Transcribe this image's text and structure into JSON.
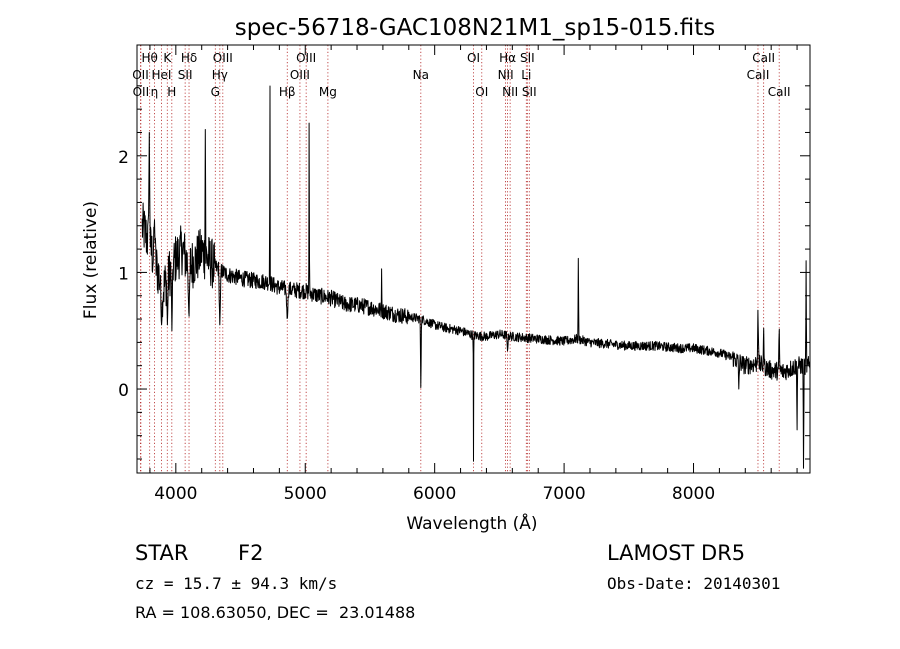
{
  "chart_data": {
    "type": "line",
    "title": "spec-56718-GAC108N21M1_sp15-015.fits",
    "xlabel": "Wavelength (Å)",
    "ylabel": "Flux (relative)",
    "xlim": [
      3700,
      8900
    ],
    "ylim": [
      -0.72,
      2.95
    ],
    "x_ticks": [
      4000,
      5000,
      6000,
      7000,
      8000
    ],
    "y_ticks": [
      0,
      1,
      2
    ],
    "x_tick_labels": [
      "4000",
      "5000",
      "6000",
      "7000",
      "8000"
    ],
    "y_tick_labels": [
      "0",
      "1",
      "2"
    ],
    "grid": false,
    "line_color": "#000000",
    "marker_line_color": "#b22222",
    "continuum": [
      [
        3700,
        1.48
      ],
      [
        3760,
        1.35
      ],
      [
        3800,
        1.22
      ],
      [
        3850,
        1.05
      ],
      [
        3900,
        0.85
      ],
      [
        3950,
        1.0
      ],
      [
        4000,
        1.12
      ],
      [
        4050,
        1.2
      ],
      [
        4100,
        1.05
      ],
      [
        4150,
        1.1
      ],
      [
        4200,
        1.18
      ],
      [
        4300,
        1.05
      ],
      [
        4400,
        0.98
      ],
      [
        4500,
        0.95
      ],
      [
        4600,
        0.93
      ],
      [
        4700,
        0.92
      ],
      [
        4800,
        0.87
      ],
      [
        4900,
        0.85
      ],
      [
        5000,
        0.84
      ],
      [
        5100,
        0.8
      ],
      [
        5200,
        0.78
      ],
      [
        5300,
        0.73
      ],
      [
        5400,
        0.72
      ],
      [
        5500,
        0.7
      ],
      [
        5600,
        0.67
      ],
      [
        5700,
        0.64
      ],
      [
        5800,
        0.62
      ],
      [
        5900,
        0.6
      ],
      [
        6000,
        0.55
      ],
      [
        6100,
        0.52
      ],
      [
        6200,
        0.5
      ],
      [
        6300,
        0.46
      ],
      [
        6400,
        0.45
      ],
      [
        6500,
        0.47
      ],
      [
        6600,
        0.45
      ],
      [
        6700,
        0.44
      ],
      [
        6800,
        0.43
      ],
      [
        6900,
        0.42
      ],
      [
        7000,
        0.41
      ],
      [
        7100,
        0.43
      ],
      [
        7200,
        0.4
      ],
      [
        7300,
        0.39
      ],
      [
        7400,
        0.38
      ],
      [
        7500,
        0.37
      ],
      [
        7600,
        0.37
      ],
      [
        7700,
        0.37
      ],
      [
        7800,
        0.36
      ],
      [
        7900,
        0.35
      ],
      [
        8000,
        0.35
      ],
      [
        8100,
        0.33
      ],
      [
        8200,
        0.31
      ],
      [
        8300,
        0.27
      ],
      [
        8400,
        0.2
      ],
      [
        8500,
        0.22
      ],
      [
        8600,
        0.16
      ],
      [
        8700,
        0.15
      ],
      [
        8800,
        0.2
      ],
      [
        8900,
        0.2
      ]
    ],
    "features": [
      {
        "x": 3795,
        "y": 2.2,
        "w": 8
      },
      {
        "x": 3835,
        "y": 1.45,
        "w": 10
      },
      {
        "x": 3890,
        "y": 0.55,
        "w": 10
      },
      {
        "x": 3935,
        "y": 0.55,
        "w": 8
      },
      {
        "x": 3970,
        "y": 0.5,
        "w": 8
      },
      {
        "x": 4102,
        "y": 0.6,
        "w": 10
      },
      {
        "x": 4228,
        "y": 2.38,
        "w": 4
      },
      {
        "x": 4340,
        "y": 0.55,
        "w": 10
      },
      {
        "x": 4727,
        "y": 2.95,
        "w": 3
      },
      {
        "x": 4861,
        "y": 0.58,
        "w": 10
      },
      {
        "x": 5030,
        "y": 2.28,
        "w": 3
      },
      {
        "x": 5590,
        "y": 1.03,
        "w": 3
      },
      {
        "x": 5893,
        "y": -0.05,
        "w": 5
      },
      {
        "x": 6300,
        "y": -0.62,
        "w": 3
      },
      {
        "x": 6563,
        "y": 0.32,
        "w": 8
      },
      {
        "x": 7110,
        "y": 1.12,
        "w": 4
      },
      {
        "x": 8350,
        "y": 0.0,
        "w": 6
      },
      {
        "x": 8498,
        "y": 0.72,
        "w": 6
      },
      {
        "x": 8542,
        "y": 0.55,
        "w": 5
      },
      {
        "x": 8662,
        "y": 0.55,
        "w": 5
      },
      {
        "x": 8800,
        "y": -0.35,
        "w": 4
      },
      {
        "x": 8850,
        "y": -0.68,
        "w": 4
      },
      {
        "x": 8870,
        "y": 1.1,
        "w": 4
      }
    ],
    "line_markers": [
      {
        "x": 3798,
        "label": "Hθ",
        "row": 0
      },
      {
        "x": 3727,
        "label": "OII",
        "row": 1
      },
      {
        "x": 3730,
        "label": "OII",
        "row": 2
      },
      {
        "x": 3835,
        "label": "η",
        "row": 2
      },
      {
        "x": 3889,
        "label": "HeI",
        "row": 1
      },
      {
        "x": 3934,
        "label": "K",
        "row": 0
      },
      {
        "x": 3969,
        "label": "H",
        "row": 2
      },
      {
        "x": 4072,
        "label": "SII",
        "row": 1
      },
      {
        "x": 4102,
        "label": "Hδ",
        "row": 0
      },
      {
        "x": 4340,
        "label": "Hγ",
        "row": 1
      },
      {
        "x": 4305,
        "label": "G",
        "row": 2
      },
      {
        "x": 4363,
        "label": "OIII",
        "row": 0
      },
      {
        "x": 4861,
        "label": "Hβ",
        "row": 2
      },
      {
        "x": 4959,
        "label": "OIII",
        "row": 1
      },
      {
        "x": 5007,
        "label": "OIII",
        "row": 0
      },
      {
        "x": 5175,
        "label": "Mg",
        "row": 2
      },
      {
        "x": 5893,
        "label": "Na",
        "row": 1
      },
      {
        "x": 6300,
        "label": "OI",
        "row": 0
      },
      {
        "x": 6364,
        "label": "OI",
        "row": 2
      },
      {
        "x": 6548,
        "label": "NII",
        "row": 1
      },
      {
        "x": 6563,
        "label": "Hα",
        "row": 0
      },
      {
        "x": 6583,
        "label": "NII",
        "row": 2
      },
      {
        "x": 6708,
        "label": "Li",
        "row": 1
      },
      {
        "x": 6716,
        "label": "SII",
        "row": 0
      },
      {
        "x": 6731,
        "label": "SII",
        "row": 2
      },
      {
        "x": 8498,
        "label": "CaII",
        "row": 1
      },
      {
        "x": 8542,
        "label": "CaII",
        "row": 0
      },
      {
        "x": 8662,
        "label": "CaII",
        "row": 2
      }
    ]
  },
  "info": {
    "class": "STAR",
    "subclass": "F2",
    "redshift": "cz = 15.7 ± 94.3 km/s",
    "coords": "RA = 108.63050, DEC =  23.01488",
    "survey": "LAMOST DR5",
    "obs_date": "Obs-Date: 20140301"
  }
}
